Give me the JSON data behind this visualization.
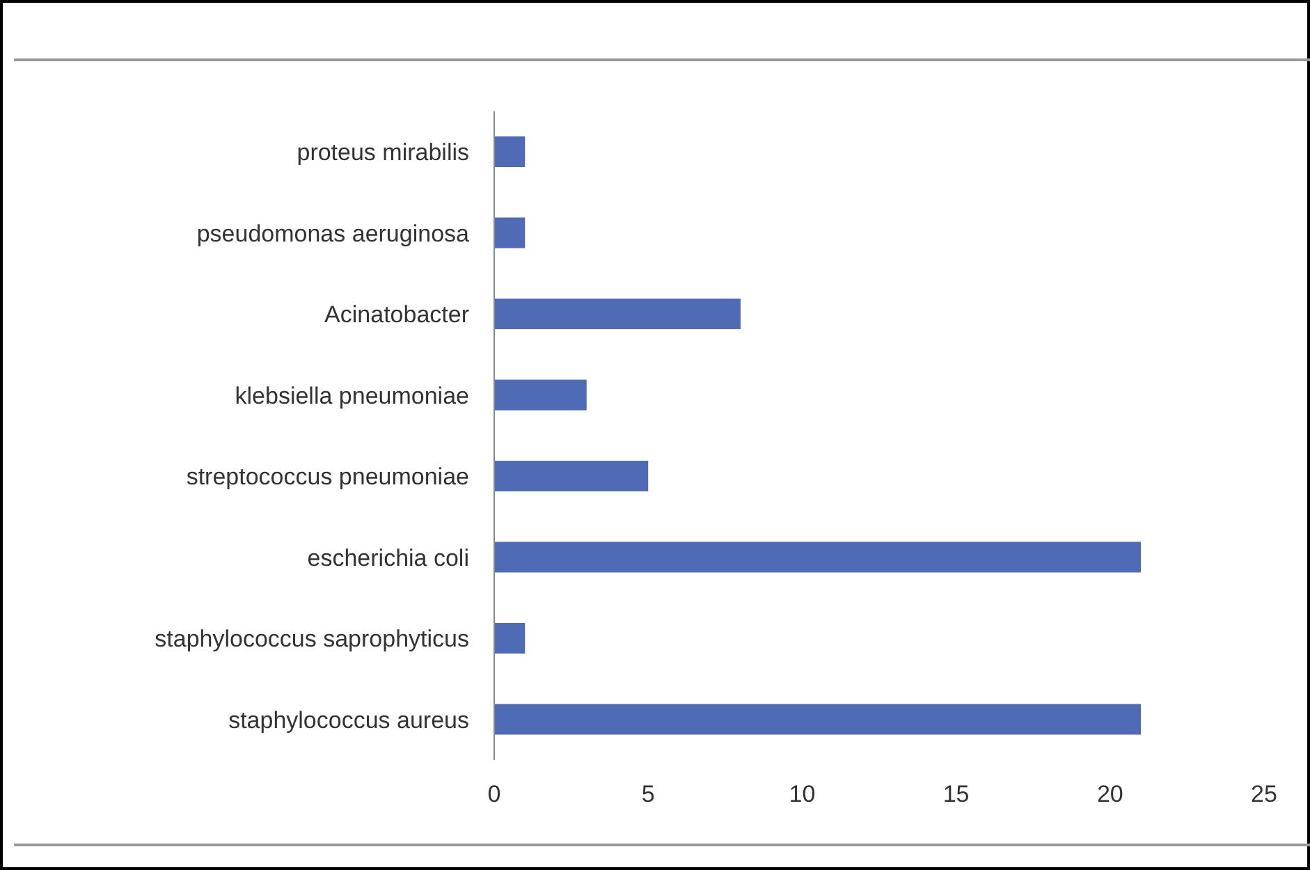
{
  "chart_data": {
    "type": "bar",
    "orientation": "horizontal",
    "categories": [
      "proteus mirabilis",
      "pseudomonas aeruginosa",
      "Acinatobacter",
      "klebsiella pneumoniae",
      "streptococcus pneumoniae",
      "escherichia coli",
      "staphylococcus saprophyticus",
      "staphylococcus aureus"
    ],
    "values": [
      1,
      1,
      8,
      3,
      5,
      21,
      1,
      21
    ],
    "color": "#4f6bb5",
    "xlim": [
      0,
      25
    ],
    "xticks": [
      0,
      5,
      10,
      15,
      20,
      25
    ],
    "grid": false,
    "legend": false
  }
}
